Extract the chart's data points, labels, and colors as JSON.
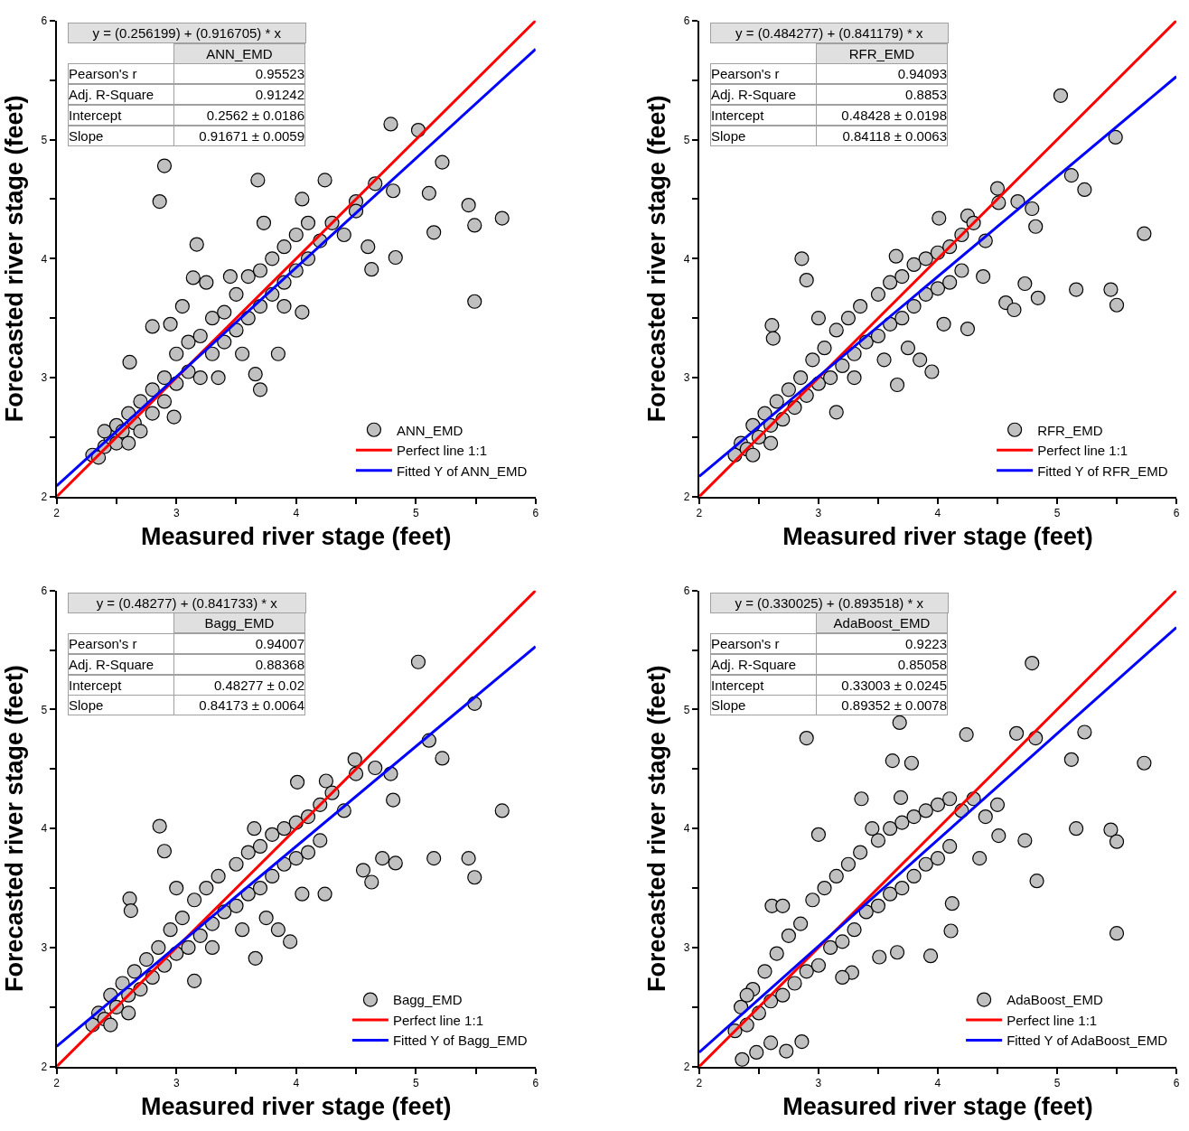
{
  "chart_data": [
    {
      "type": "scatter",
      "xlabel": "Measured river stage (feet)",
      "ylabel": "Forecasted river stage (feet)",
      "xlim": [
        2,
        6
      ],
      "ylim": [
        2,
        6
      ],
      "xticks": [
        2,
        {
          "value": 2.5,
          "label": null
        },
        3,
        {
          "value": 3.5,
          "label": null
        },
        4,
        {
          "value": 4.5,
          "label": null
        },
        5,
        {
          "value": 5.5,
          "label": null
        },
        6
      ],
      "yticks": [
        2,
        {
          "value": 2.5,
          "label": null
        },
        3,
        {
          "value": 3.5,
          "label": null
        },
        4,
        {
          "value": 4.5,
          "label": null
        },
        5,
        {
          "value": 5.5,
          "label": null
        },
        6
      ],
      "legend": "bottom right",
      "marker": "circle",
      "annotations": [
        "y = (0.256199) + (0.916705) * x",
        "ANN_EMD",
        "Pearson's r",
        "0.95523",
        "Adj. R-Square",
        "0.91242",
        "Intercept",
        "0.2562 ± 0.0186",
        "Slope",
        "0.91671 ± 0.0059"
      ],
      "series": [
        {
          "name": "ANN_EMD",
          "color": "#c0c0c0",
          "x": [
            2.9,
            2.86,
            3.68,
            4.24,
            4.79,
            5.02,
            5.22,
            4.81,
            5.11,
            5.44,
            5.72,
            5.49,
            5.15,
            4.83,
            4.63,
            5.49,
            4.66,
            4.5,
            4.05,
            3.73,
            3.17,
            3.14,
            3.85,
            3.7,
            3.66,
            2.8,
            2.61,
            2.98,
            2.3,
            2.35,
            2.4,
            2.45,
            2.5,
            2.5,
            2.55,
            2.6,
            2.65,
            2.7,
            2.7,
            2.8,
            2.8,
            2.9,
            2.9,
            3.0,
            3.0,
            3.1,
            3.1,
            3.2,
            3.2,
            3.3,
            3.3,
            3.4,
            3.4,
            3.5,
            3.5,
            3.6,
            3.6,
            3.7,
            3.7,
            3.8,
            3.8,
            3.9,
            3.9,
            4.0,
            4.0,
            4.1,
            4.1,
            4.2,
            4.3,
            4.4,
            4.5,
            4.6,
            3.35,
            3.55,
            2.95,
            3.05,
            3.25,
            4.05,
            3.9,
            2.4,
            2.6,
            3.45
          ],
          "values": [
            4.78,
            4.48,
            4.66,
            4.66,
            5.13,
            5.08,
            4.81,
            4.57,
            4.55,
            4.45,
            4.34,
            4.28,
            4.22,
            4.01,
            3.91,
            3.64,
            4.63,
            4.48,
            4.5,
            4.3,
            4.12,
            3.84,
            3.2,
            2.9,
            3.03,
            3.43,
            3.13,
            2.67,
            2.35,
            2.33,
            2.42,
            2.5,
            2.45,
            2.6,
            2.55,
            2.7,
            2.62,
            2.8,
            2.55,
            2.9,
            2.7,
            3.0,
            2.8,
            3.2,
            2.95,
            3.3,
            3.05,
            3.35,
            3.0,
            3.5,
            3.2,
            3.55,
            3.3,
            3.7,
            3.4,
            3.85,
            3.5,
            3.9,
            3.6,
            4.0,
            3.7,
            4.1,
            3.8,
            4.2,
            3.9,
            4.3,
            4.0,
            4.15,
            4.3,
            4.2,
            4.4,
            4.1,
            3.0,
            3.2,
            3.45,
            3.6,
            3.8,
            3.55,
            3.6,
            2.55,
            2.45,
            3.85
          ]
        },
        {
          "type": "line",
          "name": "Perfect line 1:1",
          "color": "#ff0000",
          "marker": "none",
          "line_style": "solid",
          "x": [
            2,
            6
          ],
          "values": [
            2,
            6
          ]
        },
        {
          "type": "line",
          "name": "Fitted Y of ANN_EMD",
          "color": "#0000ff",
          "marker": "none",
          "line_style": "solid",
          "x": [
            2,
            6
          ],
          "values": [
            2.09,
            5.76
          ]
        }
      ]
    },
    {
      "type": "scatter",
      "xlabel": "Measured river stage (feet)",
      "ylabel": "Forecasted river stage (feet)",
      "xlim": [
        2,
        6
      ],
      "ylim": [
        2,
        6
      ],
      "xticks": [
        2,
        {
          "value": 2.5,
          "label": null
        },
        3,
        {
          "value": 3.5,
          "label": null
        },
        4,
        {
          "value": 4.5,
          "label": null
        },
        5,
        {
          "value": 5.5,
          "label": null
        },
        6
      ],
      "yticks": [
        2,
        {
          "value": 2.5,
          "label": null
        },
        3,
        {
          "value": 3.5,
          "label": null
        },
        4,
        {
          "value": 4.5,
          "label": null
        },
        5,
        {
          "value": 5.5,
          "label": null
        },
        6
      ],
      "legend": "bottom right",
      "marker": "circle",
      "annotations": [
        "y = (0.484277) + (0.841179) * x",
        "RFR_EMD",
        "Pearson's r",
        "0.94093",
        "Adj. R-Square",
        "0.8853",
        "Intercept",
        "0.48428 ± 0.0198",
        "Slope",
        "0.84118 ± 0.0063"
      ],
      "series": [
        {
          "name": "RFR_EMD",
          "color": "#c0c0c0",
          "x": [
            5.03,
            5.49,
            5.12,
            5.23,
            4.5,
            4.51,
            4.67,
            4.79,
            4.82,
            5.73,
            4.01,
            4.25,
            2.86,
            2.9,
            4.73,
            5.16,
            5.45,
            5.5,
            4.84,
            4.57,
            4.64,
            3.66,
            2.61,
            2.62,
            3.15,
            3.95,
            4.25,
            4.38,
            2.3,
            2.35,
            2.4,
            2.45,
            2.5,
            2.55,
            2.6,
            2.65,
            2.7,
            2.75,
            2.8,
            2.85,
            2.9,
            2.95,
            3.0,
            3.05,
            3.1,
            3.15,
            3.2,
            3.25,
            3.3,
            3.35,
            3.4,
            3.5,
            3.5,
            3.6,
            3.6,
            3.7,
            3.7,
            3.8,
            3.8,
            3.9,
            3.9,
            4.0,
            4.0,
            4.1,
            4.1,
            4.2,
            4.2,
            4.3,
            4.4,
            3.65,
            3.0,
            3.3,
            3.55,
            3.75,
            3.85,
            4.05,
            2.6,
            2.45
          ],
          "values": [
            5.37,
            5.02,
            4.7,
            4.58,
            4.59,
            4.47,
            4.48,
            4.42,
            4.27,
            4.21,
            4.34,
            4.36,
            4.0,
            3.82,
            3.79,
            3.74,
            3.74,
            3.61,
            3.67,
            3.63,
            3.57,
            2.94,
            3.44,
            3.33,
            2.71,
            3.05,
            3.41,
            3.85,
            2.35,
            2.45,
            2.4,
            2.6,
            2.5,
            2.7,
            2.6,
            2.8,
            2.65,
            2.9,
            2.75,
            3.0,
            2.85,
            3.15,
            2.95,
            3.25,
            3.0,
            3.4,
            3.1,
            3.5,
            3.2,
            3.6,
            3.3,
            3.7,
            3.35,
            3.8,
            3.45,
            3.85,
            3.5,
            3.95,
            3.6,
            4.0,
            3.7,
            4.05,
            3.75,
            4.1,
            3.8,
            4.2,
            3.9,
            4.3,
            4.15,
            4.02,
            3.5,
            3.0,
            3.15,
            3.25,
            3.15,
            3.45,
            2.45,
            2.35
          ]
        },
        {
          "type": "line",
          "name": "Perfect line 1:1",
          "color": "#ff0000",
          "marker": "none",
          "line_style": "solid",
          "x": [
            2,
            6
          ],
          "values": [
            2,
            6
          ]
        },
        {
          "type": "line",
          "name": "Fitted Y of RFR_EMD",
          "color": "#0000ff",
          "marker": "none",
          "line_style": "solid",
          "x": [
            2,
            6
          ],
          "values": [
            2.17,
            5.53
          ]
        }
      ]
    },
    {
      "type": "scatter",
      "xlabel": "Measured river stage (feet)",
      "ylabel": "Forecasted river stage (feet)",
      "xlim": [
        2,
        6
      ],
      "ylim": [
        2,
        6
      ],
      "xticks": [
        2,
        {
          "value": 2.5,
          "label": null
        },
        3,
        {
          "value": 3.5,
          "label": null
        },
        4,
        {
          "value": 4.5,
          "label": null
        },
        5,
        {
          "value": 5.5,
          "label": null
        },
        6
      ],
      "yticks": [
        2,
        {
          "value": 2.5,
          "label": null
        },
        3,
        {
          "value": 3.5,
          "label": null
        },
        4,
        {
          "value": 4.5,
          "label": null
        },
        5,
        {
          "value": 5.5,
          "label": null
        },
        6
      ],
      "legend": "bottom right",
      "marker": "circle",
      "annotations": [
        "y = (0.48277) + (0.841733) * x",
        "Bagg_EMD",
        "Pearson's r",
        "0.94007",
        "Adj. R-Square",
        "0.88368",
        "Intercept",
        "0.48277 ± 0.02",
        "Slope",
        "0.84173 ± 0.0064"
      ],
      "series": [
        {
          "name": "Bagg_EMD",
          "color": "#c0c0c0",
          "x": [
            5.02,
            5.49,
            5.11,
            5.22,
            4.49,
            4.5,
            4.66,
            4.79,
            4.81,
            5.72,
            4.01,
            4.25,
            2.86,
            2.9,
            4.72,
            5.15,
            5.44,
            5.49,
            4.83,
            4.56,
            4.63,
            3.66,
            2.61,
            2.62,
            3.15,
            3.95,
            4.24,
            2.3,
            2.35,
            2.4,
            2.45,
            2.5,
            2.55,
            2.6,
            2.65,
            2.7,
            2.75,
            2.8,
            2.85,
            2.9,
            2.95,
            3.0,
            3.05,
            3.1,
            3.15,
            3.2,
            3.25,
            3.3,
            3.35,
            3.4,
            3.5,
            3.5,
            3.6,
            3.6,
            3.7,
            3.7,
            3.8,
            3.8,
            3.9,
            3.9,
            4.0,
            4.0,
            4.1,
            4.1,
            4.2,
            4.2,
            4.3,
            4.4,
            3.65,
            3.0,
            3.3,
            3.55,
            3.75,
            3.85,
            4.05,
            2.6,
            2.45
          ],
          "values": [
            5.4,
            5.05,
            4.74,
            4.59,
            4.58,
            4.46,
            4.51,
            4.46,
            4.24,
            4.15,
            4.39,
            4.4,
            4.02,
            3.81,
            3.75,
            3.75,
            3.75,
            3.59,
            3.71,
            3.65,
            3.55,
            2.91,
            3.41,
            3.31,
            2.72,
            3.05,
            3.45,
            2.35,
            2.45,
            2.4,
            2.6,
            2.5,
            2.7,
            2.6,
            2.8,
            2.65,
            2.9,
            2.75,
            3.0,
            2.85,
            3.15,
            2.95,
            3.25,
            3.0,
            3.4,
            3.1,
            3.5,
            3.2,
            3.6,
            3.3,
            3.7,
            3.35,
            3.8,
            3.45,
            3.85,
            3.5,
            3.95,
            3.6,
            4.0,
            3.7,
            4.05,
            3.75,
            4.1,
            3.8,
            4.2,
            3.9,
            4.3,
            4.15,
            4.0,
            3.5,
            3.0,
            3.15,
            3.25,
            3.15,
            3.45,
            2.45,
            2.35
          ]
        },
        {
          "type": "line",
          "name": "Perfect line 1:1",
          "color": "#ff0000",
          "marker": "none",
          "line_style": "solid",
          "x": [
            2,
            6
          ],
          "values": [
            2,
            6
          ]
        },
        {
          "type": "line",
          "name": "Fitted Y of Bagg_EMD",
          "color": "#0000ff",
          "marker": "none",
          "line_style": "solid",
          "x": [
            2,
            6
          ],
          "values": [
            2.17,
            5.53
          ]
        }
      ]
    },
    {
      "type": "scatter",
      "xlabel": "Measured river stage (feet)",
      "ylabel": "Forecasted river stage (feet)",
      "xlim": [
        2,
        6
      ],
      "ylim": [
        2,
        6
      ],
      "xticks": [
        2,
        {
          "value": 2.5,
          "label": null
        },
        3,
        {
          "value": 3.5,
          "label": null
        },
        4,
        {
          "value": 4.5,
          "label": null
        },
        5,
        {
          "value": 5.5,
          "label": null
        },
        6
      ],
      "yticks": [
        2,
        {
          "value": 2.5,
          "label": null
        },
        3,
        {
          "value": 3.5,
          "label": null
        },
        4,
        {
          "value": 4.5,
          "label": null
        },
        5,
        {
          "value": 5.5,
          "label": null
        },
        6
      ],
      "legend": "bottom right",
      "marker": "circle",
      "annotations": [
        "y = (0.330025) + (0.893518) * x",
        "AdaBoost_EMD",
        "Pearson's r",
        "0.9223",
        "Adj. R-Square",
        "0.85058",
        "Intercept",
        "0.33003 ± 0.0245",
        "Slope",
        "0.89352 ± 0.0078"
      ],
      "series": [
        {
          "name": "AdaBoost_EMD",
          "color": "#c0c0c0",
          "x": [
            4.79,
            3.68,
            2.9,
            4.24,
            4.66,
            4.82,
            5.23,
            5.12,
            5.73,
            3.62,
            3.78,
            3.36,
            3.69,
            5.16,
            5.45,
            5.5,
            4.83,
            5.5,
            4.73,
            4.51,
            3.94,
            3.66,
            3.51,
            3.28,
            2.86,
            2.73,
            2.48,
            2.36,
            4.12,
            4.11,
            2.61,
            2.3,
            2.35,
            2.4,
            2.45,
            2.5,
            2.55,
            2.6,
            2.65,
            2.7,
            2.75,
            2.8,
            2.85,
            2.9,
            2.95,
            3.0,
            3.05,
            3.1,
            3.15,
            3.2,
            3.25,
            3.3,
            3.35,
            3.4,
            3.5,
            3.5,
            3.6,
            3.6,
            3.7,
            3.7,
            3.8,
            3.8,
            3.9,
            3.9,
            4.0,
            4.0,
            4.1,
            4.1,
            4.2,
            4.3,
            4.4,
            2.7,
            2.6,
            3.0,
            3.2,
            3.45,
            4.35,
            4.5,
            2.4
          ],
          "values": [
            5.39,
            4.89,
            4.76,
            4.79,
            4.8,
            4.76,
            4.81,
            4.58,
            4.55,
            4.57,
            4.55,
            4.25,
            4.26,
            4.0,
            3.99,
            3.89,
            3.56,
            3.12,
            3.9,
            3.94,
            2.93,
            2.96,
            2.92,
            2.79,
            2.21,
            2.13,
            2.12,
            2.06,
            3.37,
            3.14,
            3.35,
            2.3,
            2.5,
            2.35,
            2.65,
            2.45,
            2.8,
            2.55,
            2.95,
            2.6,
            3.1,
            2.7,
            3.2,
            2.8,
            3.4,
            2.85,
            3.5,
            3.0,
            3.6,
            3.05,
            3.7,
            3.15,
            3.8,
            3.3,
            3.9,
            3.35,
            4.0,
            3.45,
            4.05,
            3.5,
            4.1,
            3.6,
            4.15,
            3.7,
            4.2,
            3.75,
            4.25,
            3.85,
            4.15,
            4.25,
            4.1,
            3.35,
            2.2,
            3.95,
            2.75,
            4.0,
            3.75,
            4.2,
            2.6
          ]
        },
        {
          "type": "line",
          "name": "Perfect line 1:1",
          "color": "#ff0000",
          "marker": "none",
          "line_style": "solid",
          "x": [
            2,
            6
          ],
          "values": [
            2,
            6
          ]
        },
        {
          "type": "line",
          "name": "Fitted Y of AdaBoost_EMD",
          "color": "#0000ff",
          "marker": "none",
          "line_style": "solid",
          "x": [
            2,
            6
          ],
          "values": [
            2.12,
            5.69
          ]
        }
      ]
    }
  ]
}
